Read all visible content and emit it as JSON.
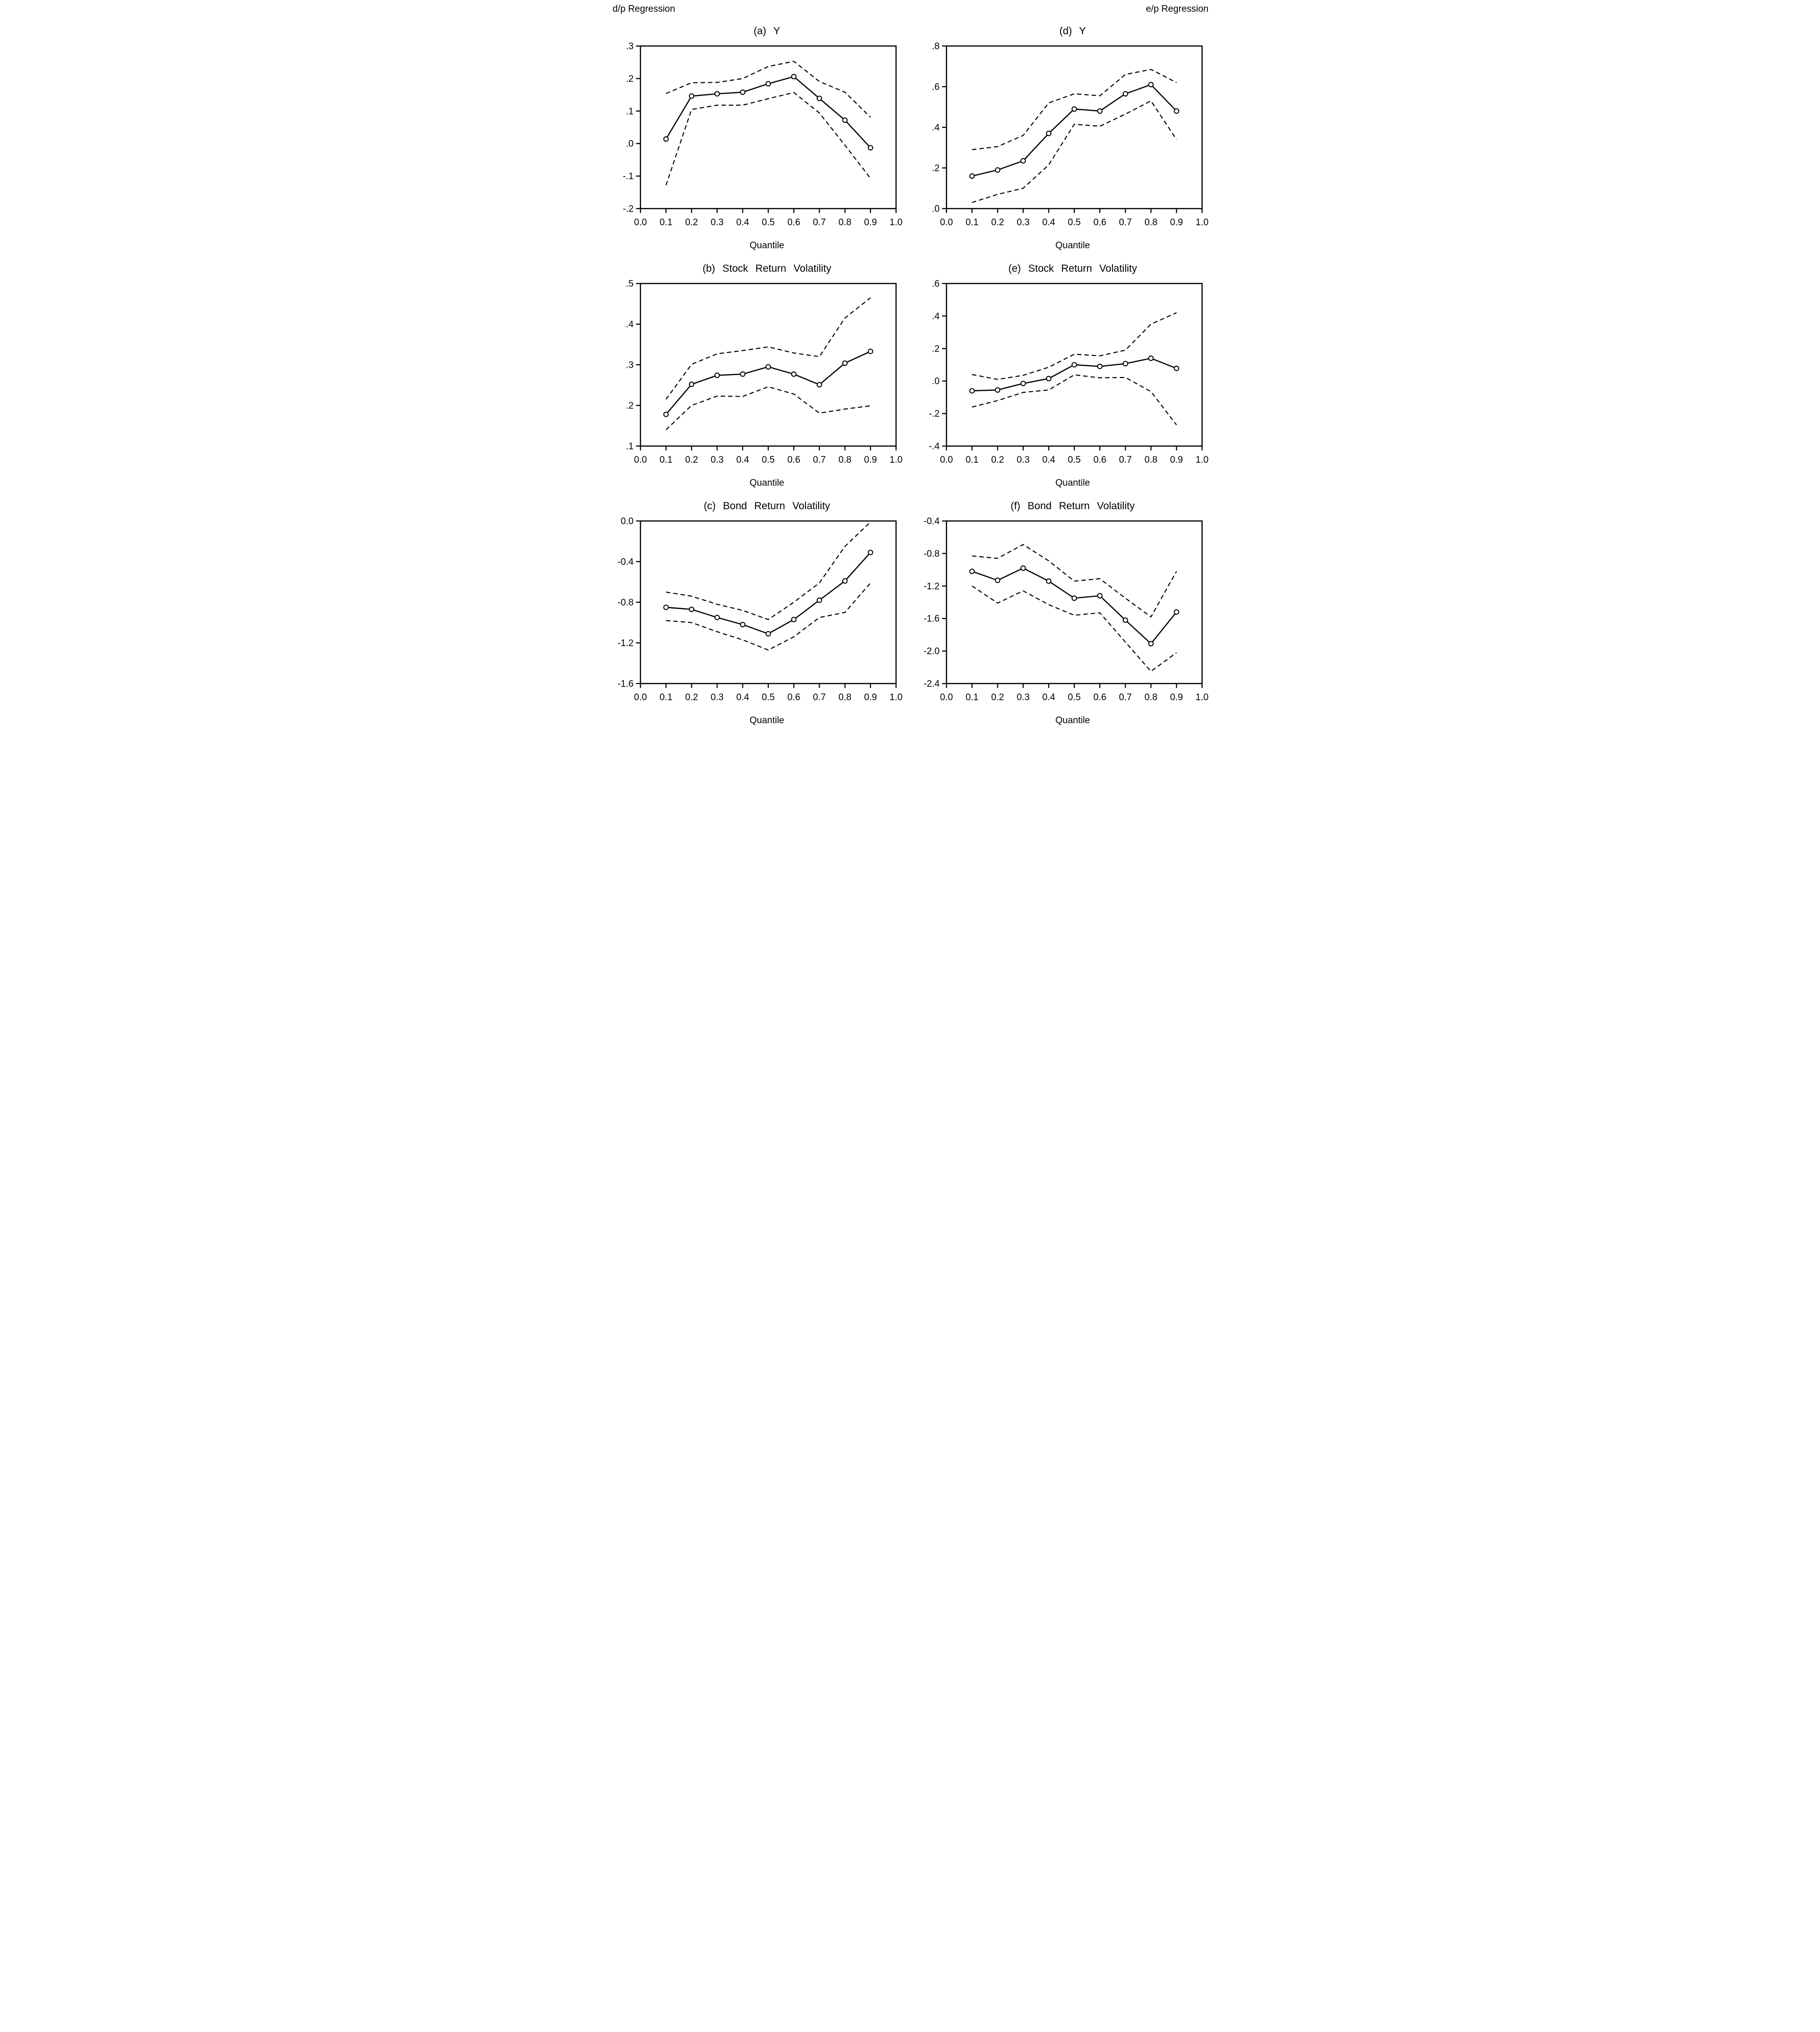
{
  "page": {
    "left_header": "d/p Regression",
    "right_header": "e/p Regression"
  },
  "x_axis": {
    "label": "Quantile",
    "tick_values": [
      0.0,
      0.1,
      0.2,
      0.3,
      0.4,
      0.5,
      0.6,
      0.7,
      0.8,
      0.9,
      1.0
    ],
    "tick_labels": [
      "0.0",
      "0.1",
      "0.2",
      "0.3",
      "0.4",
      "0.5",
      "0.6",
      "0.7",
      "0.8",
      "0.9",
      "1.0"
    ],
    "range": [
      0.0,
      1.0
    ]
  },
  "chart_data": [
    {
      "id": "a",
      "type": "line",
      "column": "d/p Regression",
      "title": "(a) Y",
      "xlabel": "Quantile",
      "xlim": [
        0.0,
        1.0
      ],
      "ylim": [
        -0.2,
        0.3
      ],
      "ytick_values": [
        0.3,
        0.2,
        0.1,
        0.0,
        -0.1,
        -0.2
      ],
      "ytick_labels": [
        ".3",
        ".2",
        ".1",
        ".0",
        "-.1",
        "-.2"
      ],
      "x": [
        0.1,
        0.2,
        0.3,
        0.4,
        0.5,
        0.6,
        0.7,
        0.8,
        0.9
      ],
      "series": [
        {
          "name": "estimate",
          "style": "solid-circle",
          "values": [
            0.014,
            0.146,
            0.153,
            0.158,
            0.184,
            0.206,
            0.139,
            0.072,
            -0.013
          ]
        },
        {
          "name": "upper-band",
          "style": "dashed",
          "values": [
            0.154,
            0.187,
            0.188,
            0.2,
            0.237,
            0.253,
            0.191,
            0.158,
            0.081
          ]
        },
        {
          "name": "lower-band",
          "style": "dashed",
          "values": [
            -0.128,
            0.105,
            0.118,
            0.118,
            0.138,
            0.157,
            0.094,
            -0.005,
            -0.107
          ]
        }
      ]
    },
    {
      "id": "d",
      "type": "line",
      "column": "e/p Regression",
      "title": "(d) Y",
      "xlabel": "Quantile",
      "xlim": [
        0.0,
        1.0
      ],
      "ylim": [
        0.0,
        0.8
      ],
      "ytick_values": [
        0.8,
        0.6,
        0.4,
        0.2,
        0.0
      ],
      "ytick_labels": [
        ".8",
        ".6",
        ".4",
        ".2",
        ".0"
      ],
      "x": [
        0.1,
        0.2,
        0.3,
        0.4,
        0.5,
        0.6,
        0.7,
        0.8,
        0.9
      ],
      "series": [
        {
          "name": "estimate",
          "style": "solid-circle",
          "values": [
            0.16,
            0.19,
            0.235,
            0.37,
            0.49,
            0.48,
            0.565,
            0.61,
            0.48
          ]
        },
        {
          "name": "upper-band",
          "style": "dashed",
          "values": [
            0.29,
            0.305,
            0.36,
            0.52,
            0.565,
            0.555,
            0.66,
            0.685,
            0.62
          ]
        },
        {
          "name": "lower-band",
          "style": "dashed",
          "values": [
            0.03,
            0.07,
            0.1,
            0.215,
            0.415,
            0.405,
            0.465,
            0.53,
            0.34
          ]
        }
      ]
    },
    {
      "id": "b",
      "type": "line",
      "column": "d/p Regression",
      "title": "(b) Stock Return Volatility",
      "xlabel": "Quantile",
      "xlim": [
        0.0,
        1.0
      ],
      "ylim": [
        0.1,
        0.5
      ],
      "ytick_values": [
        0.5,
        0.4,
        0.3,
        0.2,
        0.1
      ],
      "ytick_labels": [
        ".5",
        ".4",
        ".3",
        ".2",
        ".1"
      ],
      "x": [
        0.1,
        0.2,
        0.3,
        0.4,
        0.5,
        0.6,
        0.7,
        0.8,
        0.9
      ],
      "series": [
        {
          "name": "estimate",
          "style": "solid-circle",
          "values": [
            0.178,
            0.252,
            0.274,
            0.277,
            0.295,
            0.277,
            0.251,
            0.304,
            0.333
          ]
        },
        {
          "name": "upper-band",
          "style": "dashed",
          "values": [
            0.215,
            0.301,
            0.327,
            0.335,
            0.344,
            0.329,
            0.32,
            0.415,
            0.465
          ]
        },
        {
          "name": "lower-band",
          "style": "dashed",
          "values": [
            0.14,
            0.2,
            0.223,
            0.222,
            0.246,
            0.228,
            0.181,
            0.191,
            0.199
          ]
        }
      ]
    },
    {
      "id": "e",
      "type": "line",
      "column": "e/p Regression",
      "title": "(e) Stock Return Volatility",
      "xlabel": "Quantile",
      "xlim": [
        0.0,
        1.0
      ],
      "ylim": [
        -0.4,
        0.6
      ],
      "ytick_values": [
        0.6,
        0.4,
        0.2,
        0.0,
        -0.2,
        -0.4
      ],
      "ytick_labels": [
        ".6",
        ".4",
        ".2",
        ".0",
        "-.2",
        "-.4"
      ],
      "x": [
        0.1,
        0.2,
        0.3,
        0.4,
        0.5,
        0.6,
        0.7,
        0.8,
        0.9
      ],
      "series": [
        {
          "name": "estimate",
          "style": "solid-circle",
          "values": [
            -0.06,
            -0.055,
            -0.015,
            0.015,
            0.1,
            0.09,
            0.107,
            0.14,
            0.078
          ]
        },
        {
          "name": "upper-band",
          "style": "dashed",
          "values": [
            0.04,
            0.01,
            0.035,
            0.085,
            0.165,
            0.155,
            0.19,
            0.35,
            0.42
          ]
        },
        {
          "name": "lower-band",
          "style": "dashed",
          "values": [
            -0.16,
            -0.12,
            -0.07,
            -0.055,
            0.038,
            0.02,
            0.022,
            -0.065,
            -0.27
          ]
        }
      ]
    },
    {
      "id": "c",
      "type": "line",
      "column": "d/p Regression",
      "title": "(c) Bond Return Volatility",
      "xlabel": "Quantile",
      "xlim": [
        0.0,
        1.0
      ],
      "ylim": [
        -1.6,
        0.0
      ],
      "ytick_values": [
        0.0,
        -0.4,
        -0.8,
        -1.2,
        -1.6
      ],
      "ytick_labels": [
        "0.0",
        "-0.4",
        "-0.8",
        "-1.2",
        "-1.6"
      ],
      "x": [
        0.1,
        0.2,
        0.3,
        0.4,
        0.5,
        0.6,
        0.7,
        0.8,
        0.9
      ],
      "series": [
        {
          "name": "estimate",
          "style": "solid-circle",
          "values": [
            -0.85,
            -0.87,
            -0.95,
            -1.02,
            -1.11,
            -0.97,
            -0.78,
            -0.59,
            -0.31
          ]
        },
        {
          "name": "upper-band",
          "style": "dashed",
          "values": [
            -0.7,
            -0.74,
            -0.82,
            -0.88,
            -0.97,
            -0.8,
            -0.61,
            -0.25,
            -0.01
          ]
        },
        {
          "name": "lower-band",
          "style": "dashed",
          "values": [
            -0.98,
            -1.0,
            -1.09,
            -1.17,
            -1.27,
            -1.14,
            -0.95,
            -0.9,
            -0.61
          ]
        }
      ]
    },
    {
      "id": "f",
      "type": "line",
      "column": "e/p Regression",
      "title": "(f) Bond Return Volatility",
      "xlabel": "Quantile",
      "xlim": [
        0.0,
        1.0
      ],
      "ylim": [
        -2.4,
        -0.4
      ],
      "ytick_values": [
        -0.4,
        -0.8,
        -1.2,
        -1.6,
        -2.0,
        -2.4
      ],
      "ytick_labels": [
        "-0.4",
        "-0.8",
        "-1.2",
        "-1.6",
        "-2.0",
        "-2.4"
      ],
      "x": [
        0.1,
        0.2,
        0.3,
        0.4,
        0.5,
        0.6,
        0.7,
        0.8,
        0.9
      ],
      "series": [
        {
          "name": "estimate",
          "style": "solid-circle",
          "values": [
            -1.02,
            -1.13,
            -0.98,
            -1.14,
            -1.35,
            -1.32,
            -1.62,
            -1.91,
            -1.52
          ]
        },
        {
          "name": "upper-band",
          "style": "dashed",
          "values": [
            -0.83,
            -0.86,
            -0.69,
            -0.89,
            -1.14,
            -1.11,
            -1.35,
            -1.58,
            -1.02
          ]
        },
        {
          "name": "lower-band",
          "style": "dashed",
          "values": [
            -1.2,
            -1.41,
            -1.26,
            -1.43,
            -1.56,
            -1.53,
            -1.89,
            -2.25,
            -2.02
          ]
        }
      ]
    }
  ]
}
